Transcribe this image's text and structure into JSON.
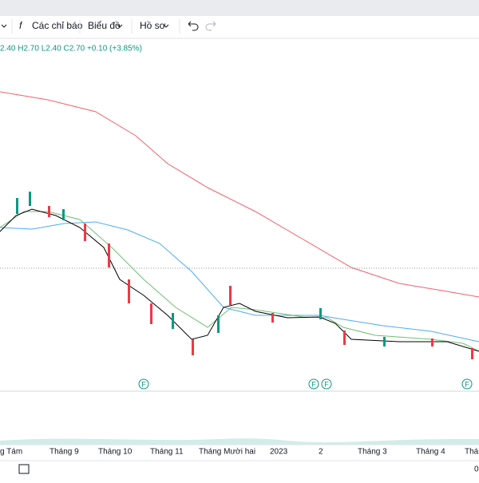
{
  "toolbar": {
    "indicators": "Các chỉ báo",
    "chart": "Biểu đồ",
    "profile": "Hồ sơ"
  },
  "legend": {
    "ohlc": "2.40 H2.70 L2.40 C2.70 +0.10 (+3.85%)"
  },
  "markers": [
    "F",
    "F",
    "F",
    "F"
  ],
  "x_axis": {
    "labels": [
      "g Tám",
      "Tháng 9",
      "Tháng 10",
      "Tháng 11",
      "Tháng Mười hai",
      "2023",
      "2",
      "Tháng 3",
      "Tháng 4",
      "Tháng"
    ]
  },
  "footer": {
    "right": "0"
  }
}
